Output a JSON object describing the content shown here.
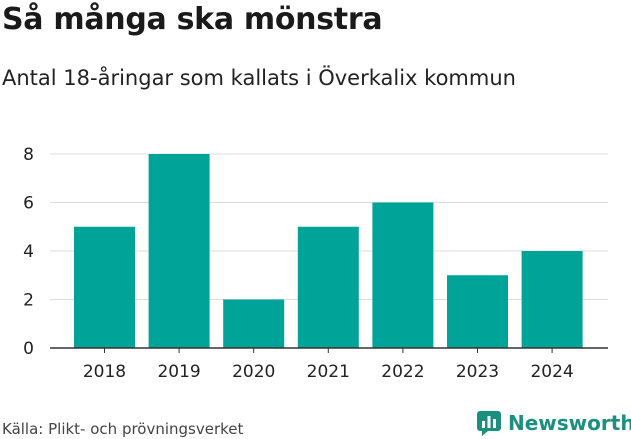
{
  "title": "Så många ska mönstra",
  "subtitle": "Antal 18-åringar som kallats i Överkalix kommun",
  "source": "Källa: Plikt- och prövningsverket",
  "brand": {
    "name": "Newsworthy",
    "icon": "newsworthy-logo-icon",
    "color": "#1d8f7f"
  },
  "chart_data": {
    "type": "bar",
    "categories": [
      "2018",
      "2019",
      "2020",
      "2021",
      "2022",
      "2023",
      "2024"
    ],
    "values": [
      5,
      8,
      2,
      5,
      6,
      3,
      4
    ],
    "title": "",
    "xlabel": "",
    "ylabel": "",
    "ylim": [
      0,
      8
    ],
    "yticks": [
      0,
      2,
      4,
      6,
      8
    ],
    "grid": true,
    "bar_color": "#00a398"
  }
}
